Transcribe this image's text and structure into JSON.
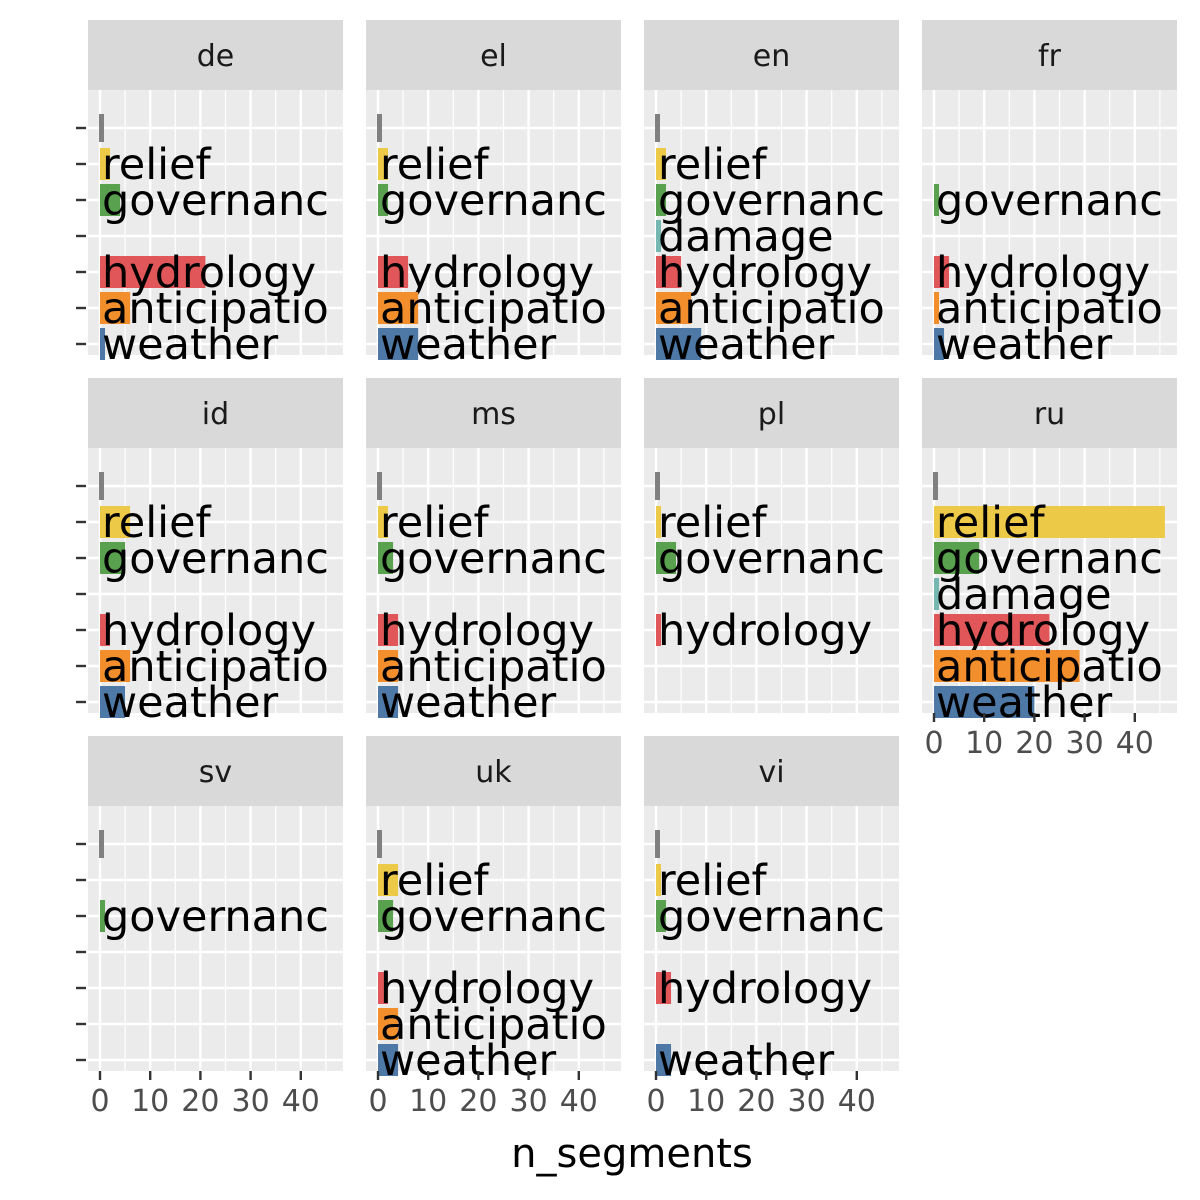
{
  "chart_data": {
    "type": "bar",
    "orientation": "horizontal",
    "facet_layout": "wrap 4 columns",
    "xlabel": "n_segments",
    "ylabel": "",
    "xlim": [
      0,
      48
    ],
    "x_ticks": [
      "0",
      "10",
      "20",
      "30",
      "40"
    ],
    "grid": true,
    "categories": [
      "",
      "relief",
      "governanc",
      "damage",
      "hydrology",
      "anticipatio",
      "weather"
    ],
    "category_colors": {
      "": "#808080",
      "relief": "#EDC948",
      "governanc": "#59A14F",
      "damage": "#76B7B2",
      "hydrology": "#E15759",
      "anticipatio": "#F28E2B",
      "weather": "#4E79A7"
    },
    "facets": [
      {
        "name": "de",
        "values": {
          "": 1,
          "relief": 2,
          "governanc": 4,
          "hydrology": 21,
          "anticipatio": 6,
          "weather": 1
        }
      },
      {
        "name": "el",
        "values": {
          "": 1,
          "relief": 2,
          "governanc": 2,
          "hydrology": 6,
          "anticipatio": 8,
          "weather": 8
        }
      },
      {
        "name": "en",
        "values": {
          "": 1,
          "relief": 2,
          "governanc": 2,
          "damage": 1,
          "hydrology": 5,
          "anticipatio": 7,
          "weather": 9
        }
      },
      {
        "name": "fr",
        "values": {
          "governanc": 1,
          "hydrology": 3,
          "anticipatio": 1,
          "weather": 2
        }
      },
      {
        "name": "id",
        "values": {
          "": 1,
          "relief": 6,
          "governanc": 5,
          "hydrology": 2,
          "anticipatio": 6,
          "weather": 5
        }
      },
      {
        "name": "ms",
        "values": {
          "": 1,
          "relief": 2,
          "governanc": 3,
          "hydrology": 4,
          "anticipatio": 4,
          "weather": 4
        }
      },
      {
        "name": "pl",
        "values": {
          "": 1,
          "relief": 1,
          "governanc": 4,
          "hydrology": 1
        }
      },
      {
        "name": "ru",
        "values": {
          "": 1,
          "relief": 46,
          "governanc": 9,
          "damage": 1,
          "hydrology": 23,
          "anticipatio": 29,
          "weather": 20
        }
      },
      {
        "name": "sv",
        "values": {
          "": 1,
          "governanc": 1
        }
      },
      {
        "name": "uk",
        "values": {
          "": 1,
          "relief": 4,
          "governanc": 3,
          "hydrology": 2,
          "anticipatio": 4,
          "weather": 4
        }
      },
      {
        "name": "vi",
        "values": {
          "": 1,
          "relief": 1,
          "governanc": 2,
          "hydrology": 3,
          "weather": 3
        }
      }
    ]
  }
}
